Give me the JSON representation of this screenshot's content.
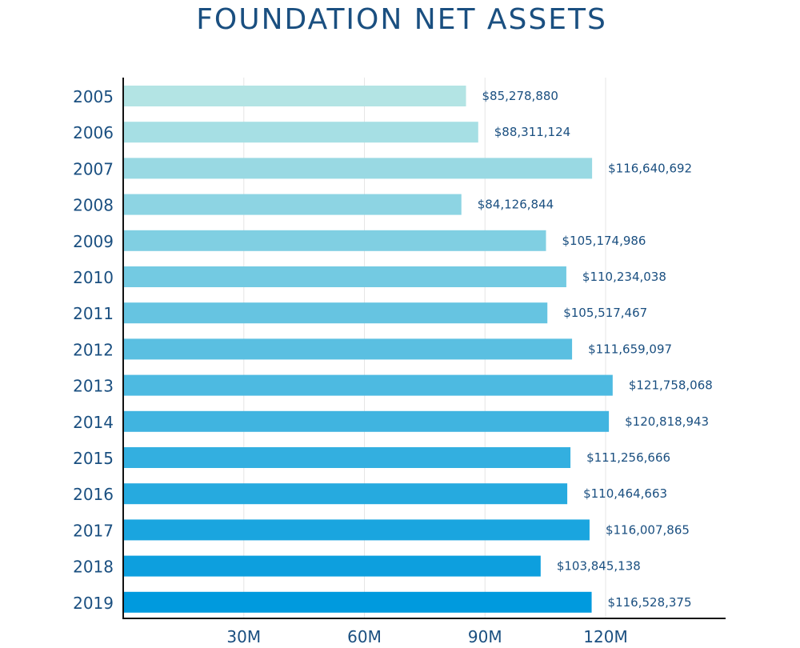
{
  "chart_data": {
    "type": "bar",
    "orientation": "horizontal",
    "title": "FOUNDATION NET ASSETS",
    "xlabel": "",
    "ylabel": "",
    "categories": [
      "2005",
      "2006",
      "2007",
      "2008",
      "2009",
      "2010",
      "2011",
      "2012",
      "2013",
      "2014",
      "2015",
      "2016",
      "2017",
      "2018",
      "2019"
    ],
    "values": [
      85278880,
      88311124,
      116640692,
      84126844,
      105174986,
      110234038,
      105517467,
      111659097,
      121758068,
      120818943,
      111256666,
      110464663,
      116007865,
      103845138,
      116528375
    ],
    "value_labels": [
      "$85,278,880",
      "$88,311,124",
      "$116,640,692",
      "$84,126,844",
      "$105,174,986",
      "$110,234,038",
      "$105,517,467",
      "$111,659,097",
      "$121,758,068",
      "$120,818,943",
      "$111,256,666",
      "$110,464,663",
      "$116,007,865",
      "$103,845,138",
      "$116,528,375"
    ],
    "x_ticks": [
      30000000,
      60000000,
      90000000,
      120000000
    ],
    "x_tick_labels": [
      "30M",
      "60M",
      "90M",
      "120M"
    ],
    "xlim": [
      0,
      149000000
    ],
    "grid": true,
    "legend": "none",
    "colors": {
      "bar_first": "#b3e4e4",
      "bar_last": "#009ade",
      "text": "#1a4f80",
      "axis": "#111111",
      "grid": "#e6e6e6"
    }
  }
}
